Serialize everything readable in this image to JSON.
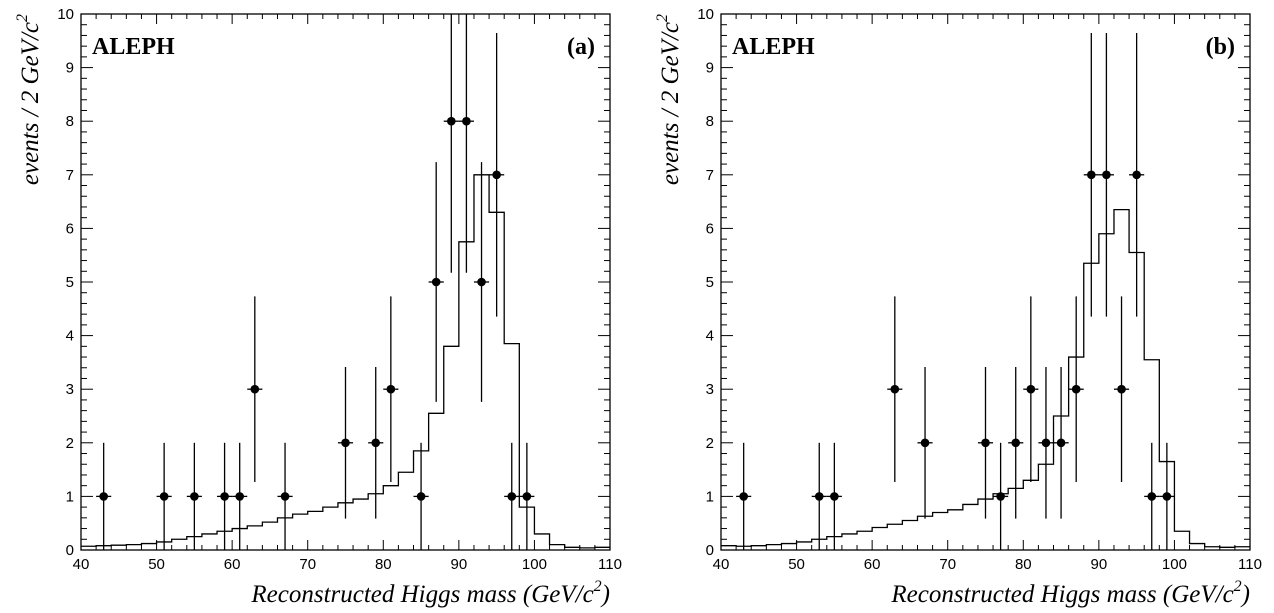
{
  "chart_data": [
    {
      "type": "scatter",
      "panel_label": "(a)",
      "experiment": "ALEPH",
      "xlabel": "Reconstructed Higgs mass (GeV/c",
      "xlabel_sup": "2",
      "xlabel_close": ")",
      "ylabel": "events / 2 GeV/c",
      "ylabel_sup": "2",
      "xlim": [
        40,
        110
      ],
      "ylim": [
        0,
        10
      ],
      "x_ticks": [
        "40",
        "50",
        "60",
        "70",
        "80",
        "90",
        "100",
        "110"
      ],
      "y_ticks": [
        "0",
        "1",
        "2",
        "3",
        "4",
        "5",
        "6",
        "7",
        "8",
        "9",
        "10"
      ],
      "grid": false,
      "legend": "none",
      "series": [
        {
          "kind": "data_points_with_errors",
          "x": [
            43,
            51,
            55,
            59,
            61,
            63,
            67,
            75,
            79,
            81,
            85,
            87,
            89,
            91,
            93,
            95,
            97,
            99
          ],
          "y": [
            1,
            1,
            1,
            1,
            1,
            3,
            1,
            2,
            2,
            3,
            1,
            5,
            8,
            8,
            5,
            7,
            1,
            1
          ]
        },
        {
          "kind": "histogram",
          "bin_edges": [
            40,
            42,
            44,
            46,
            48,
            50,
            52,
            54,
            56,
            58,
            60,
            62,
            64,
            66,
            68,
            70,
            72,
            74,
            76,
            78,
            80,
            82,
            84,
            86,
            88,
            90,
            92,
            94,
            96,
            98,
            100,
            102,
            104,
            106,
            108,
            110
          ],
          "values": [
            0.07,
            0.08,
            0.09,
            0.1,
            0.12,
            0.15,
            0.2,
            0.25,
            0.3,
            0.35,
            0.4,
            0.45,
            0.52,
            0.6,
            0.67,
            0.72,
            0.8,
            0.88,
            0.95,
            1.05,
            1.2,
            1.45,
            1.85,
            2.55,
            3.8,
            5.75,
            7.0,
            6.3,
            3.85,
            0.8,
            0.3,
            0.1,
            0.05,
            0.04,
            0.05
          ]
        }
      ]
    },
    {
      "type": "scatter",
      "panel_label": "(b)",
      "experiment": "ALEPH",
      "xlabel": "Reconstructed Higgs mass (GeV/c",
      "xlabel_sup": "2",
      "xlabel_close": ")",
      "ylabel": "events / 2 GeV/c",
      "ylabel_sup": "2",
      "xlim": [
        40,
        110
      ],
      "ylim": [
        0,
        10
      ],
      "x_ticks": [
        "40",
        "50",
        "60",
        "70",
        "80",
        "90",
        "100",
        "110"
      ],
      "y_ticks": [
        "0",
        "1",
        "2",
        "3",
        "4",
        "5",
        "6",
        "7",
        "8",
        "9",
        "10"
      ],
      "grid": false,
      "legend": "none",
      "series": [
        {
          "kind": "data_points_with_errors",
          "x": [
            43,
            53,
            55,
            63,
            67,
            75,
            77,
            79,
            81,
            83,
            85,
            87,
            89,
            91,
            93,
            95,
            97,
            99
          ],
          "y": [
            1,
            1,
            1,
            3,
            2,
            2,
            1,
            2,
            3,
            2,
            2,
            3,
            7,
            7,
            3,
            7,
            1,
            1
          ]
        },
        {
          "kind": "histogram",
          "bin_edges": [
            40,
            42,
            44,
            46,
            48,
            50,
            52,
            54,
            56,
            58,
            60,
            62,
            64,
            66,
            68,
            70,
            72,
            74,
            76,
            78,
            80,
            82,
            84,
            86,
            88,
            90,
            92,
            94,
            96,
            98,
            100,
            102,
            104,
            106,
            108,
            110
          ],
          "values": [
            0.08,
            0.07,
            0.08,
            0.1,
            0.12,
            0.15,
            0.2,
            0.25,
            0.3,
            0.35,
            0.42,
            0.48,
            0.55,
            0.63,
            0.7,
            0.75,
            0.85,
            0.95,
            1.05,
            1.15,
            1.3,
            1.6,
            2.5,
            3.6,
            5.35,
            5.9,
            6.35,
            5.55,
            3.55,
            1.65,
            0.35,
            0.12,
            0.06,
            0.05,
            0.06
          ]
        }
      ]
    }
  ]
}
